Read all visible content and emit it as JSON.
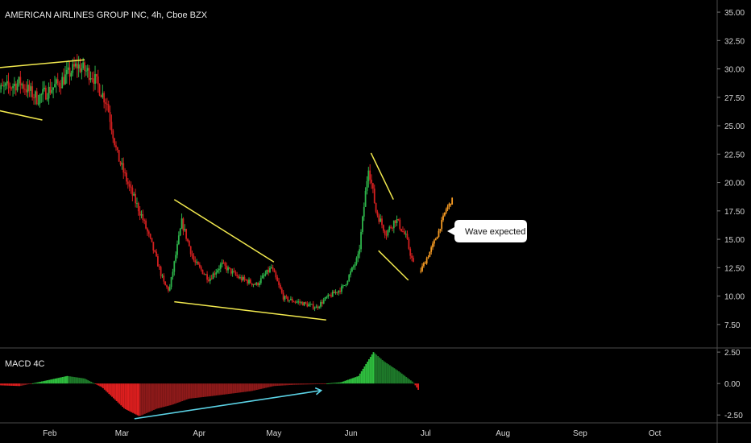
{
  "header": {
    "title": "AMERICAN AIRLINES GROUP INC, 4h, Cboe BZX"
  },
  "macd": {
    "label": "MACD 4C"
  },
  "callout": {
    "text": "Wave expected"
  },
  "colors": {
    "background": "#000000",
    "up": "#2db34a",
    "down": "#d11f1f",
    "projection": "#f59a23",
    "trendline": "#f2e94e",
    "divergence": "#5bd3e6",
    "axis_text": "#d6d6d6"
  },
  "chart_data": [
    {
      "type": "candlestick",
      "title": "AMERICAN AIRLINES GROUP INC, 4h, Cboe BZX",
      "y_ticks": [
        "35.00",
        "32.50",
        "30.00",
        "27.50",
        "25.00",
        "22.50",
        "20.00",
        "17.50",
        "15.00",
        "12.50",
        "10.00",
        "7.50"
      ],
      "ylim": [
        6.0,
        35.5
      ],
      "x_ticks": [
        "Feb",
        "Mar",
        "Apr",
        "May",
        "Jun",
        "Jul",
        "Aug",
        "Sep",
        "Oct"
      ],
      "price_path": [
        {
          "date": "2020-01-10",
          "close": 28.0
        },
        {
          "date": "2020-01-20",
          "close": 28.8
        },
        {
          "date": "2020-01-27",
          "close": 27.4
        },
        {
          "date": "2020-02-05",
          "close": 28.8
        },
        {
          "date": "2020-02-12",
          "close": 30.3
        },
        {
          "date": "2020-02-18",
          "close": 29.5
        },
        {
          "date": "2020-02-24",
          "close": 27.0
        },
        {
          "date": "2020-02-28",
          "close": 22.5
        },
        {
          "date": "2020-03-04",
          "close": 19.5
        },
        {
          "date": "2020-03-09",
          "close": 17.0
        },
        {
          "date": "2020-03-13",
          "close": 14.5
        },
        {
          "date": "2020-03-18",
          "close": 11.0
        },
        {
          "date": "2020-03-20",
          "close": 10.5
        },
        {
          "date": "2020-03-25",
          "close": 16.5
        },
        {
          "date": "2020-03-30",
          "close": 13.0
        },
        {
          "date": "2020-04-05",
          "close": 11.5
        },
        {
          "date": "2020-04-10",
          "close": 12.8
        },
        {
          "date": "2020-04-17",
          "close": 11.6
        },
        {
          "date": "2020-04-24",
          "close": 11.0
        },
        {
          "date": "2020-04-30",
          "close": 12.5
        },
        {
          "date": "2020-05-05",
          "close": 9.8
        },
        {
          "date": "2020-05-12",
          "close": 9.4
        },
        {
          "date": "2020-05-18",
          "close": 9.0
        },
        {
          "date": "2020-05-22",
          "close": 9.8
        },
        {
          "date": "2020-05-29",
          "close": 10.8
        },
        {
          "date": "2020-06-04",
          "close": 13.5
        },
        {
          "date": "2020-06-08",
          "close": 21.5
        },
        {
          "date": "2020-06-11",
          "close": 17.5
        },
        {
          "date": "2020-06-15",
          "close": 15.5
        },
        {
          "date": "2020-06-19",
          "close": 16.8
        },
        {
          "date": "2020-06-23",
          "close": 15.2
        },
        {
          "date": "2020-06-26",
          "close": 12.8
        }
      ],
      "projection_path": [
        {
          "date": "2020-06-29",
          "close": 12.2
        },
        {
          "date": "2020-07-02",
          "close": 13.5
        },
        {
          "date": "2020-07-06",
          "close": 15.5
        },
        {
          "date": "2020-07-09",
          "close": 17.5
        },
        {
          "date": "2020-07-12",
          "close": 18.5
        }
      ],
      "trendlines": [
        {
          "from": [
            "2020-01-06",
            30.0
          ],
          "to": [
            "2020-02-15",
            30.8
          ]
        },
        {
          "from": [
            "2020-01-06",
            26.6
          ],
          "to": [
            "2020-01-29",
            25.5
          ]
        },
        {
          "from": [
            "2020-03-22",
            18.5
          ],
          "to": [
            "2020-05-01",
            13.0
          ]
        },
        {
          "from": [
            "2020-03-22",
            9.5
          ],
          "to": [
            "2020-05-22",
            7.9
          ]
        },
        {
          "from": [
            "2020-06-09",
            22.6
          ],
          "to": [
            "2020-06-18",
            18.5
          ]
        },
        {
          "from": [
            "2020-06-12",
            14.0
          ],
          "to": [
            "2020-06-24",
            11.4
          ]
        }
      ]
    },
    {
      "type": "bar",
      "title": "MACD 4C",
      "y_ticks": [
        "2.50",
        "0.00",
        "-2.50"
      ],
      "ylim": [
        -3.0,
        2.7
      ],
      "histogram_path": [
        {
          "date": "2020-01-06",
          "value": -0.1
        },
        {
          "date": "2020-01-20",
          "value": -0.2
        },
        {
          "date": "2020-02-01",
          "value": 0.3
        },
        {
          "date": "2020-02-08",
          "value": 0.6
        },
        {
          "date": "2020-02-15",
          "value": 0.4
        },
        {
          "date": "2020-02-22",
          "value": -0.3
        },
        {
          "date": "2020-03-02",
          "value": -2.0
        },
        {
          "date": "2020-03-08",
          "value": -2.6
        },
        {
          "date": "2020-03-15",
          "value": -2.0
        },
        {
          "date": "2020-03-21",
          "value": -1.7
        },
        {
          "date": "2020-03-28",
          "value": -1.2
        },
        {
          "date": "2020-04-06",
          "value": -1.0
        },
        {
          "date": "2020-04-14",
          "value": -0.8
        },
        {
          "date": "2020-04-22",
          "value": -0.6
        },
        {
          "date": "2020-05-01",
          "value": -0.2
        },
        {
          "date": "2020-05-09",
          "value": -0.1
        },
        {
          "date": "2020-05-19",
          "value": -0.05
        },
        {
          "date": "2020-05-28",
          "value": 0.1
        },
        {
          "date": "2020-06-04",
          "value": 0.6
        },
        {
          "date": "2020-06-10",
          "value": 2.5
        },
        {
          "date": "2020-06-14",
          "value": 1.8
        },
        {
          "date": "2020-06-20",
          "value": 1.0
        },
        {
          "date": "2020-06-26",
          "value": 0.1
        },
        {
          "date": "2020-06-28",
          "value": -0.5
        }
      ],
      "divergence_line": {
        "from": [
          "2020-03-06",
          -2.8
        ],
        "to": [
          "2020-05-20",
          -0.55
        ]
      }
    }
  ]
}
